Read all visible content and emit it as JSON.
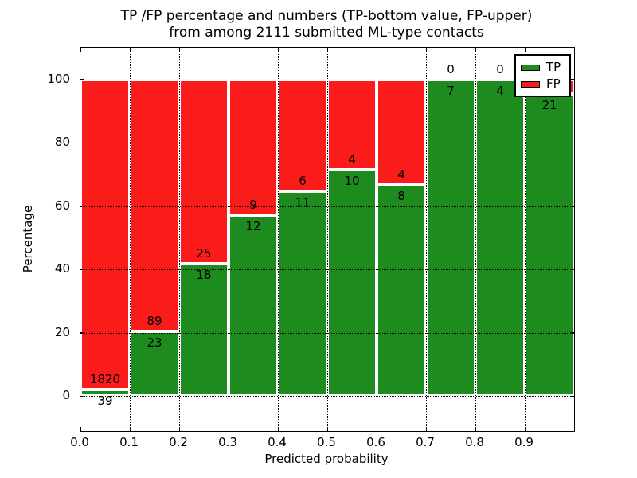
{
  "title": {
    "line1": "TP /FP percentage and numbers (TP-bottom value, FP-upper)",
    "line2": "from among 2111 submitted ML-type contacts"
  },
  "axes": {
    "xlabel": "Predicted probability",
    "ylabel": "Percentage",
    "x_tick_labels": [
      "0.0",
      "0.1",
      "0.2",
      "0.3",
      "0.4",
      "0.5",
      "0.6",
      "0.7",
      "0.8",
      "0.9"
    ],
    "x_tick_values": [
      0,
      0.1,
      0.2,
      0.3,
      0.4,
      0.5,
      0.6,
      0.7,
      0.8,
      0.9
    ],
    "y_tick_labels": [
      "0",
      "20",
      "40",
      "60",
      "80",
      "100"
    ],
    "y_tick_values": [
      0,
      20,
      40,
      60,
      80,
      100
    ],
    "x_grid_values": [
      0.1,
      0.2,
      0.3,
      0.4,
      0.5,
      0.6,
      0.7,
      0.8,
      0.9
    ],
    "grid": "dotted"
  },
  "legend": {
    "position": "upper-right",
    "items": [
      {
        "label": "TP",
        "color": "#1e8b1e"
      },
      {
        "label": "FP",
        "color": "#fa1b1b"
      }
    ]
  },
  "colors": {
    "tp": "#1e8b1e",
    "fp": "#fa1b1b",
    "bar_edge": "#ffffff",
    "text": "#000000"
  },
  "chart_data": {
    "type": "bar",
    "stacked": true,
    "normalized_to_percent": true,
    "total_contacts": 2111,
    "xlim": [
      0,
      1
    ],
    "ylim": [
      -11,
      110
    ],
    "bar_width": 0.1,
    "series_note": "TP bottom (green), FP upper (red); labels show raw counts near the TP/FP boundary",
    "bins": [
      {
        "x_start": 0.0,
        "x_end": 0.1,
        "tp": 39,
        "fp": 1820,
        "tp_label": "39",
        "fp_label": "1820",
        "fp_label_visible": true
      },
      {
        "x_start": 0.1,
        "x_end": 0.2,
        "tp": 23,
        "fp": 89,
        "tp_label": "23",
        "fp_label": "89",
        "fp_label_visible": true
      },
      {
        "x_start": 0.2,
        "x_end": 0.3,
        "tp": 18,
        "fp": 25,
        "tp_label": "18",
        "fp_label": "25",
        "fp_label_visible": true
      },
      {
        "x_start": 0.3,
        "x_end": 0.4,
        "tp": 12,
        "fp": 9,
        "tp_label": "12",
        "fp_label": "9",
        "fp_label_visible": true
      },
      {
        "x_start": 0.4,
        "x_end": 0.5,
        "tp": 11,
        "fp": 6,
        "tp_label": "11",
        "fp_label": "6",
        "fp_label_visible": true
      },
      {
        "x_start": 0.5,
        "x_end": 0.6,
        "tp": 10,
        "fp": 4,
        "tp_label": "10",
        "fp_label": "4",
        "fp_label_visible": true
      },
      {
        "x_start": 0.6,
        "x_end": 0.7,
        "tp": 8,
        "fp": 4,
        "tp_label": "8",
        "fp_label": "4",
        "fp_label_visible": true
      },
      {
        "x_start": 0.7,
        "x_end": 0.8,
        "tp": 7,
        "fp": 0,
        "tp_label": "7",
        "fp_label": "0",
        "fp_label_visible": true
      },
      {
        "x_start": 0.8,
        "x_end": 0.9,
        "tp": 4,
        "fp": 0,
        "tp_label": "4",
        "fp_label": "0",
        "fp_label_visible": true
      },
      {
        "x_start": 0.9,
        "x_end": 1.0,
        "tp": 21,
        "fp": 1,
        "tp_label": "21",
        "fp_label": "",
        "fp_label_visible": false
      }
    ]
  }
}
